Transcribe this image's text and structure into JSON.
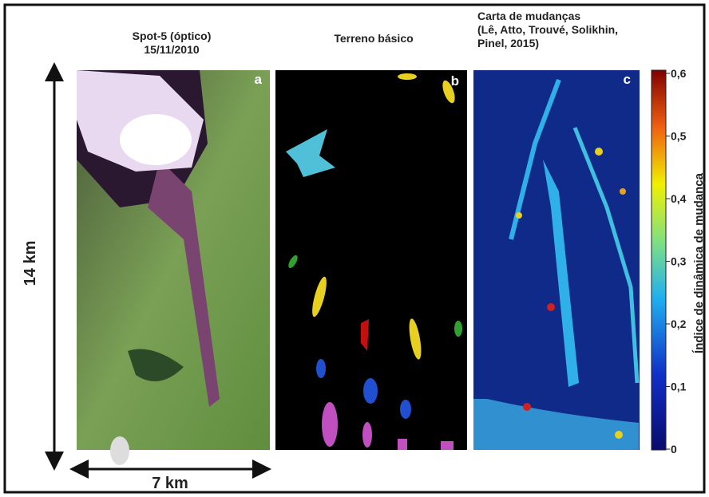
{
  "panels": [
    {
      "title_lines": [
        "Spot-5 (óptico)",
        "15/11/2010"
      ],
      "letter": "a"
    },
    {
      "title_lines": [
        "Terreno básico"
      ],
      "letter": "b"
    },
    {
      "title_lines": [
        "Carta de mudanças",
        "(Lê, Atto, Trouvé, Solikhin,",
        "Pinel, 2015)"
      ],
      "letter": "c"
    }
  ],
  "scale": {
    "vertical": "14 km",
    "horizontal": "7 km"
  },
  "colorbar": {
    "label": "Índice de dinâmica de mudança",
    "ticks": [
      {
        "value": 0,
        "label": "0"
      },
      {
        "value": 0.1,
        "label": "0,1"
      },
      {
        "value": 0.2,
        "label": "0,2"
      },
      {
        "value": 0.3,
        "label": "0,3"
      },
      {
        "value": 0.4,
        "label": "0,4"
      },
      {
        "value": 0.5,
        "label": "0,5"
      },
      {
        "value": 0.6,
        "label": "0,6"
      }
    ]
  }
}
